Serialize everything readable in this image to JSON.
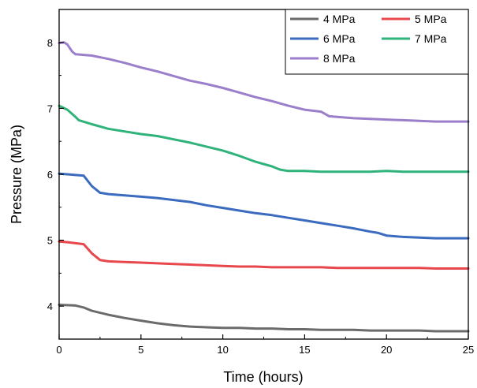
{
  "chart_data": {
    "type": "line",
    "title": "",
    "xlabel": "Time (hours)",
    "ylabel": "Pressure (MPa)",
    "xlim": [
      0,
      25
    ],
    "ylim": [
      3.5,
      8.5
    ],
    "xticks": [
      0,
      5,
      10,
      15,
      20,
      25
    ],
    "yticks": [
      4,
      5,
      6,
      7,
      8
    ],
    "xtick_labels": [
      "0",
      "5",
      "10",
      "15",
      "20",
      "25"
    ],
    "ytick_labels": [
      "4",
      "5",
      "6",
      "7",
      "8"
    ],
    "grid": false,
    "legend_position": "top-right",
    "series": [
      {
        "name": "4 MPa",
        "color": "#6b6b6b",
        "x": [
          0,
          1,
          1.5,
          2,
          3,
          4,
          5,
          6,
          7,
          8,
          9,
          10,
          11,
          12,
          13,
          14,
          15,
          16,
          17,
          18,
          19,
          20,
          21,
          22,
          23,
          24,
          25
        ],
        "y": [
          4.02,
          4.01,
          3.98,
          3.93,
          3.87,
          3.82,
          3.78,
          3.74,
          3.71,
          3.69,
          3.68,
          3.67,
          3.67,
          3.66,
          3.66,
          3.65,
          3.65,
          3.64,
          3.64,
          3.64,
          3.63,
          3.63,
          3.63,
          3.63,
          3.62,
          3.62,
          3.62
        ]
      },
      {
        "name": "5 MPa",
        "color": "#e8474c",
        "x": [
          0,
          0.5,
          1.5,
          2,
          2.5,
          3,
          4,
          5,
          6,
          7,
          8,
          9,
          10,
          11,
          12,
          13,
          14,
          15,
          16,
          17,
          18,
          19,
          20,
          21,
          22,
          23,
          24,
          25
        ],
        "y": [
          4.98,
          4.97,
          4.94,
          4.8,
          4.7,
          4.68,
          4.67,
          4.66,
          4.65,
          4.64,
          4.63,
          4.62,
          4.61,
          4.6,
          4.6,
          4.59,
          4.59,
          4.59,
          4.59,
          4.58,
          4.58,
          4.58,
          4.58,
          4.58,
          4.58,
          4.57,
          4.57,
          4.57
        ]
      },
      {
        "name": "6 MPa",
        "color": "#3b6bbf",
        "x": [
          0,
          0.5,
          1.5,
          2,
          2.5,
          3,
          4,
          5,
          6,
          7,
          8,
          9,
          10,
          11,
          12,
          13,
          14,
          15,
          16,
          17,
          18,
          19,
          19.5,
          20,
          21,
          22,
          23,
          24,
          25
        ],
        "y": [
          6.01,
          6.0,
          5.98,
          5.82,
          5.72,
          5.7,
          5.68,
          5.66,
          5.64,
          5.61,
          5.58,
          5.53,
          5.49,
          5.45,
          5.41,
          5.38,
          5.34,
          5.3,
          5.26,
          5.22,
          5.18,
          5.13,
          5.11,
          5.07,
          5.05,
          5.04,
          5.03,
          5.03,
          5.03
        ]
      },
      {
        "name": "7 MPa",
        "color": "#2fb37a",
        "x": [
          0,
          0.5,
          1,
          1.2,
          2,
          3,
          4,
          5,
          6,
          7,
          8,
          9,
          10,
          11,
          12,
          13,
          13.5,
          14,
          15,
          16,
          17,
          18,
          19,
          20,
          21,
          22,
          23,
          24,
          25
        ],
        "y": [
          7.04,
          6.98,
          6.87,
          6.82,
          6.76,
          6.69,
          6.65,
          6.61,
          6.58,
          6.53,
          6.48,
          6.42,
          6.36,
          6.28,
          6.19,
          6.12,
          6.07,
          6.05,
          6.05,
          6.04,
          6.04,
          6.04,
          6.04,
          6.05,
          6.04,
          6.04,
          6.04,
          6.04,
          6.04
        ]
      },
      {
        "name": "8 MPa",
        "color": "#9b7fcb",
        "x": [
          0,
          0.3,
          0.5,
          0.8,
          1,
          2,
          3,
          4,
          5,
          6,
          7,
          8,
          9,
          10,
          11,
          12,
          13,
          14,
          15,
          16,
          16.5,
          17,
          18,
          19,
          20,
          21,
          22,
          23,
          24,
          25
        ],
        "y": [
          7.99,
          8.0,
          7.97,
          7.86,
          7.82,
          7.8,
          7.75,
          7.69,
          7.62,
          7.56,
          7.49,
          7.42,
          7.37,
          7.31,
          7.24,
          7.17,
          7.11,
          7.04,
          6.98,
          6.95,
          6.88,
          6.87,
          6.85,
          6.84,
          6.83,
          6.82,
          6.81,
          6.8,
          6.8,
          6.8
        ]
      }
    ]
  }
}
